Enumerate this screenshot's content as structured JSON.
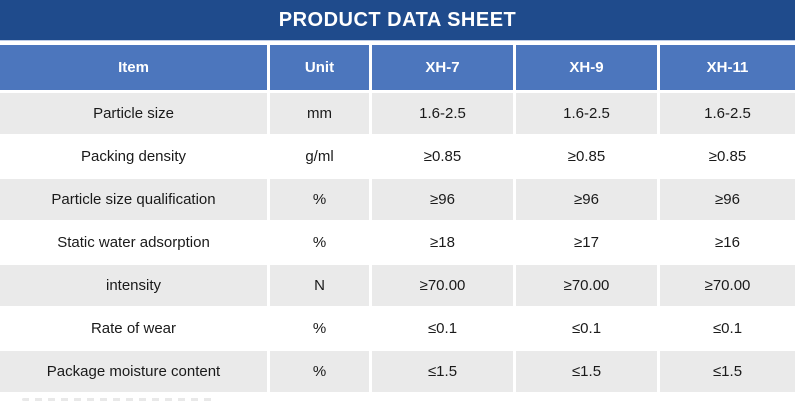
{
  "title": "PRODUCT DATA SHEET",
  "colors": {
    "title_bar": "#1F4B8C",
    "header_row": "#4C76BD",
    "row_alternate": "#EAEAEA",
    "row_base": "#FFFFFF",
    "header_text": "#FFFFFF",
    "cell_text": "#1A1A1A"
  },
  "table": {
    "columns": [
      "Item",
      "Unit",
      "XH-7",
      "XH-9",
      "XH-11"
    ],
    "rows": [
      {
        "item": "Particle size",
        "unit": "mm",
        "values": [
          "1.6-2.5",
          "1.6-2.5",
          "1.6-2.5"
        ]
      },
      {
        "item": "Packing density",
        "unit": "g/ml",
        "values": [
          "≥0.85",
          "≥0.85",
          "≥0.85"
        ]
      },
      {
        "item": "Particle size qualification",
        "unit": "%",
        "values": [
          "≥96",
          "≥96",
          "≥96"
        ]
      },
      {
        "item": "Static water adsorption",
        "unit": "%",
        "values": [
          "≥18",
          "≥17",
          "≥16"
        ]
      },
      {
        "item": "intensity",
        "unit": "N",
        "values": [
          "≥70.00",
          "≥70.00",
          "≥70.00"
        ]
      },
      {
        "item": "Rate of wear",
        "unit": "%",
        "values": [
          "≤0.1",
          "≤0.1",
          "≤0.1"
        ]
      },
      {
        "item": "Package moisture content",
        "unit": "%",
        "values": [
          "≤1.5",
          "≤1.5",
          "≤1.5"
        ]
      }
    ]
  }
}
